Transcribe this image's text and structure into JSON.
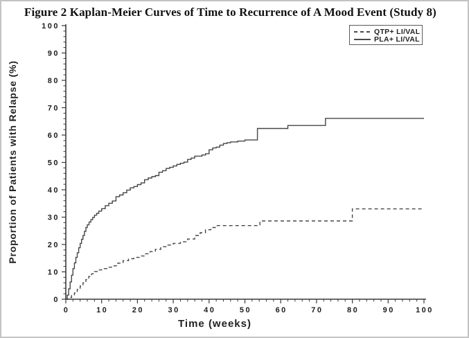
{
  "chart_data": {
    "type": "line",
    "subtype": "kaplan-meier-step",
    "title": "Figure 2 Kaplan-Meier Curves of Time to Recurrence of A Mood Event (Study 8)",
    "xlabel": "Time (weeks)",
    "ylabel": "Proportion of Patients with Relapse (%)",
    "xlim": [
      0,
      100
    ],
    "ylim": [
      0,
      100
    ],
    "xticks": [
      0,
      10,
      20,
      30,
      40,
      50,
      60,
      70,
      80,
      90,
      100
    ],
    "yticks": [
      0,
      10,
      20,
      30,
      40,
      50,
      60,
      70,
      80,
      90,
      100
    ],
    "minor_tick_step": 2,
    "grid": false,
    "legend_position": "top-right",
    "line_color": "#464646",
    "axis_color": "#3a3a3a",
    "series": [
      {
        "name": "QTP+ LI/VAL",
        "style": "dashed",
        "points": [
          [
            0,
            0
          ],
          [
            0.8,
            0.6
          ],
          [
            1.6,
            1.4
          ],
          [
            2.4,
            2.3
          ],
          [
            3.2,
            3.6
          ],
          [
            4,
            4.8
          ],
          [
            4.8,
            6.0
          ],
          [
            5.6,
            7.2
          ],
          [
            6.4,
            8.3
          ],
          [
            7.2,
            9.3
          ],
          [
            8,
            10.1
          ],
          [
            9,
            10.7
          ],
          [
            10,
            11.2
          ],
          [
            11.5,
            11.7
          ],
          [
            13,
            12.2
          ],
          [
            14.5,
            13.2
          ],
          [
            16,
            14.1
          ],
          [
            17.5,
            14.8
          ],
          [
            19,
            15.3
          ],
          [
            20.5,
            15.8
          ],
          [
            22,
            16.6
          ],
          [
            23.5,
            17.4
          ],
          [
            25,
            18.2
          ],
          [
            26.5,
            19.2
          ],
          [
            28,
            19.8
          ],
          [
            30,
            20.4
          ],
          [
            32,
            21.0
          ],
          [
            34,
            22.0
          ],
          [
            36,
            23.3
          ],
          [
            37.5,
            24.3
          ],
          [
            39,
            25.4
          ],
          [
            40.5,
            26.2
          ],
          [
            42,
            26.9
          ],
          [
            54.2,
            28.6
          ],
          [
            80,
            33.0
          ],
          [
            100,
            33.0
          ]
        ]
      },
      {
        "name": "PLA+ LI/VAL",
        "style": "solid",
        "points": [
          [
            0,
            0
          ],
          [
            0.4,
            1.5
          ],
          [
            0.8,
            3.8
          ],
          [
            1.2,
            6.3
          ],
          [
            1.6,
            8.8
          ],
          [
            2,
            11.2
          ],
          [
            2.4,
            13.3
          ],
          [
            2.8,
            15.3
          ],
          [
            3.2,
            17.0
          ],
          [
            3.6,
            18.8
          ],
          [
            4,
            20.4
          ],
          [
            4.4,
            21.9
          ],
          [
            4.8,
            23.3
          ],
          [
            5.2,
            24.8
          ],
          [
            5.6,
            26.2
          ],
          [
            6,
            27.2
          ],
          [
            6.5,
            28.2
          ],
          [
            7,
            29.1
          ],
          [
            7.5,
            29.9
          ],
          [
            8,
            30.7
          ],
          [
            8.6,
            31.4
          ],
          [
            9.2,
            32.2
          ],
          [
            10,
            33.1
          ],
          [
            11,
            34.2
          ],
          [
            12,
            35.1
          ],
          [
            13,
            35.9
          ],
          [
            14,
            37.5
          ],
          [
            15,
            38.1
          ],
          [
            16,
            38.9
          ],
          [
            17,
            39.9
          ],
          [
            18,
            40.7
          ],
          [
            19,
            41.2
          ],
          [
            20,
            41.9
          ],
          [
            21,
            42.5
          ],
          [
            22,
            43.7
          ],
          [
            23,
            44.3
          ],
          [
            24,
            44.8
          ],
          [
            25,
            45.2
          ],
          [
            26,
            46.4
          ],
          [
            27,
            47.0
          ],
          [
            28,
            47.8
          ],
          [
            29,
            48.2
          ],
          [
            30,
            48.7
          ],
          [
            31,
            49.3
          ],
          [
            32,
            49.7
          ],
          [
            33,
            50.1
          ],
          [
            34,
            51.1
          ],
          [
            35,
            51.6
          ],
          [
            36,
            52.3
          ],
          [
            38,
            52.7
          ],
          [
            39,
            53.2
          ],
          [
            40,
            54.6
          ],
          [
            41,
            55.3
          ],
          [
            42,
            55.6
          ],
          [
            43,
            56.3
          ],
          [
            44,
            56.9
          ],
          [
            45,
            57.2
          ],
          [
            46,
            57.5
          ],
          [
            48,
            57.8
          ],
          [
            50,
            58.2
          ],
          [
            53.5,
            62.4
          ],
          [
            62,
            63.5
          ],
          [
            72.5,
            66.1
          ],
          [
            100,
            66.1
          ]
        ]
      }
    ]
  }
}
